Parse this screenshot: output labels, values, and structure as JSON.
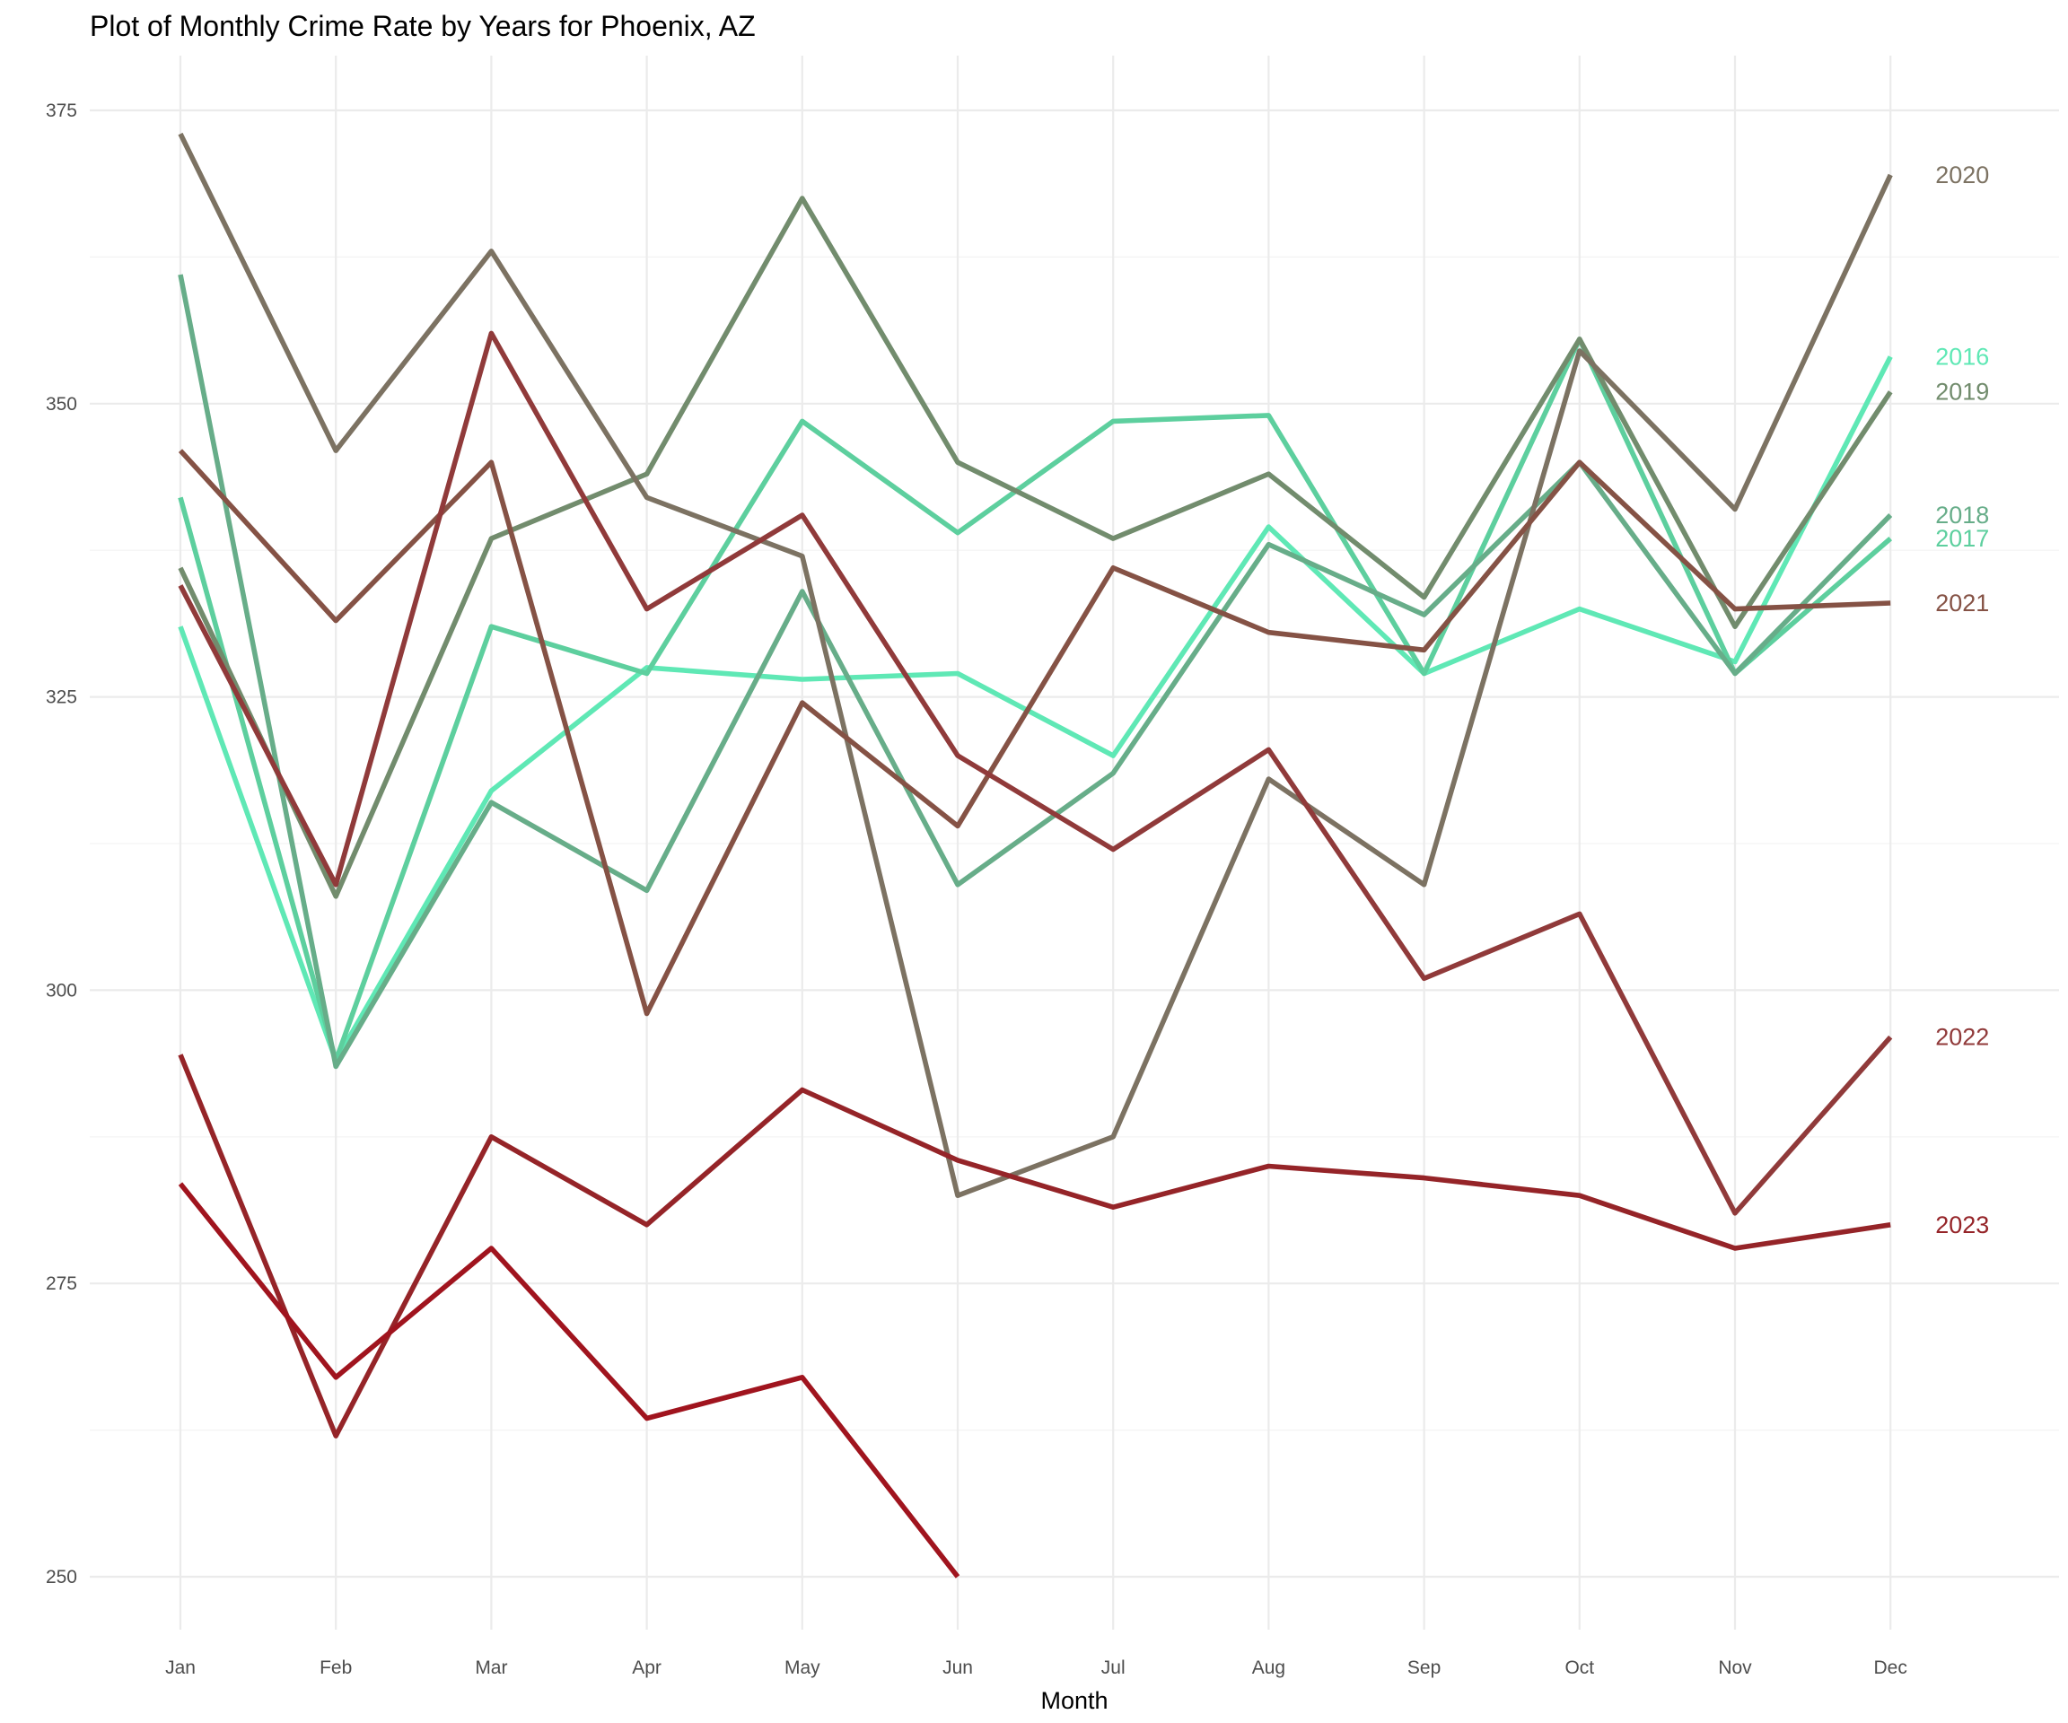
{
  "chart_data": {
    "type": "line",
    "title": "Plot of Monthly Crime Rate by Years for Phoenix, AZ",
    "xlabel": "Month",
    "ylabel": "",
    "categories": [
      "Jan",
      "Feb",
      "Mar",
      "Apr",
      "May",
      "Jun",
      "Jul",
      "Aug",
      "Sep",
      "Oct",
      "Nov",
      "Dec"
    ],
    "ylim": [
      247,
      378
    ],
    "yticks": [
      250,
      275,
      300,
      325,
      350,
      375
    ],
    "grid": true,
    "legend": "direct labels at right end of lines",
    "series": [
      {
        "name": "2016",
        "color": "#5fe8b5",
        "values": [
          331,
          294,
          317,
          327.5,
          326.5,
          327,
          320,
          339.5,
          327,
          332.5,
          328,
          354
        ]
      },
      {
        "name": "2017",
        "color": "#5dcf9e",
        "values": [
          342,
          294,
          331,
          327,
          348.5,
          339,
          348.5,
          349,
          327,
          355.5,
          327,
          338.5
        ]
      },
      {
        "name": "2018",
        "color": "#67ad89",
        "values": [
          361,
          293.5,
          316,
          308.5,
          334,
          309,
          318.5,
          338,
          332,
          345,
          327,
          340.5
        ]
      },
      {
        "name": "2019",
        "color": "#728c6d",
        "values": [
          336,
          308,
          338.5,
          344,
          367.5,
          345,
          338.5,
          344,
          333.5,
          355.5,
          331,
          351
        ]
      },
      {
        "name": "2020",
        "color": "#7c7262",
        "values": [
          373,
          346,
          363,
          342,
          337,
          282.5,
          287.5,
          318,
          309,
          354.5,
          341,
          369.5
        ]
      },
      {
        "name": "2021",
        "color": "#855245",
        "values": [
          346,
          331.5,
          345,
          298,
          324.5,
          314,
          336,
          330.5,
          329,
          345,
          332.5,
          333
        ]
      },
      {
        "name": "2022",
        "color": "#903a3a",
        "values": [
          334.5,
          309,
          356,
          332.5,
          340.5,
          320,
          312,
          320.5,
          301,
          306.5,
          281,
          296
        ]
      },
      {
        "name": "2023",
        "color": "#952428",
        "values": [
          294.5,
          262,
          287.5,
          280,
          291.5,
          285.5,
          281.5,
          285,
          284,
          282.5,
          278,
          280
        ]
      },
      {
        "name": "",
        "color": "#a0141e",
        "values": [
          283.5,
          267,
          278,
          263.5,
          267,
          250,
          null,
          null,
          null,
          null,
          null,
          null
        ]
      }
    ]
  }
}
